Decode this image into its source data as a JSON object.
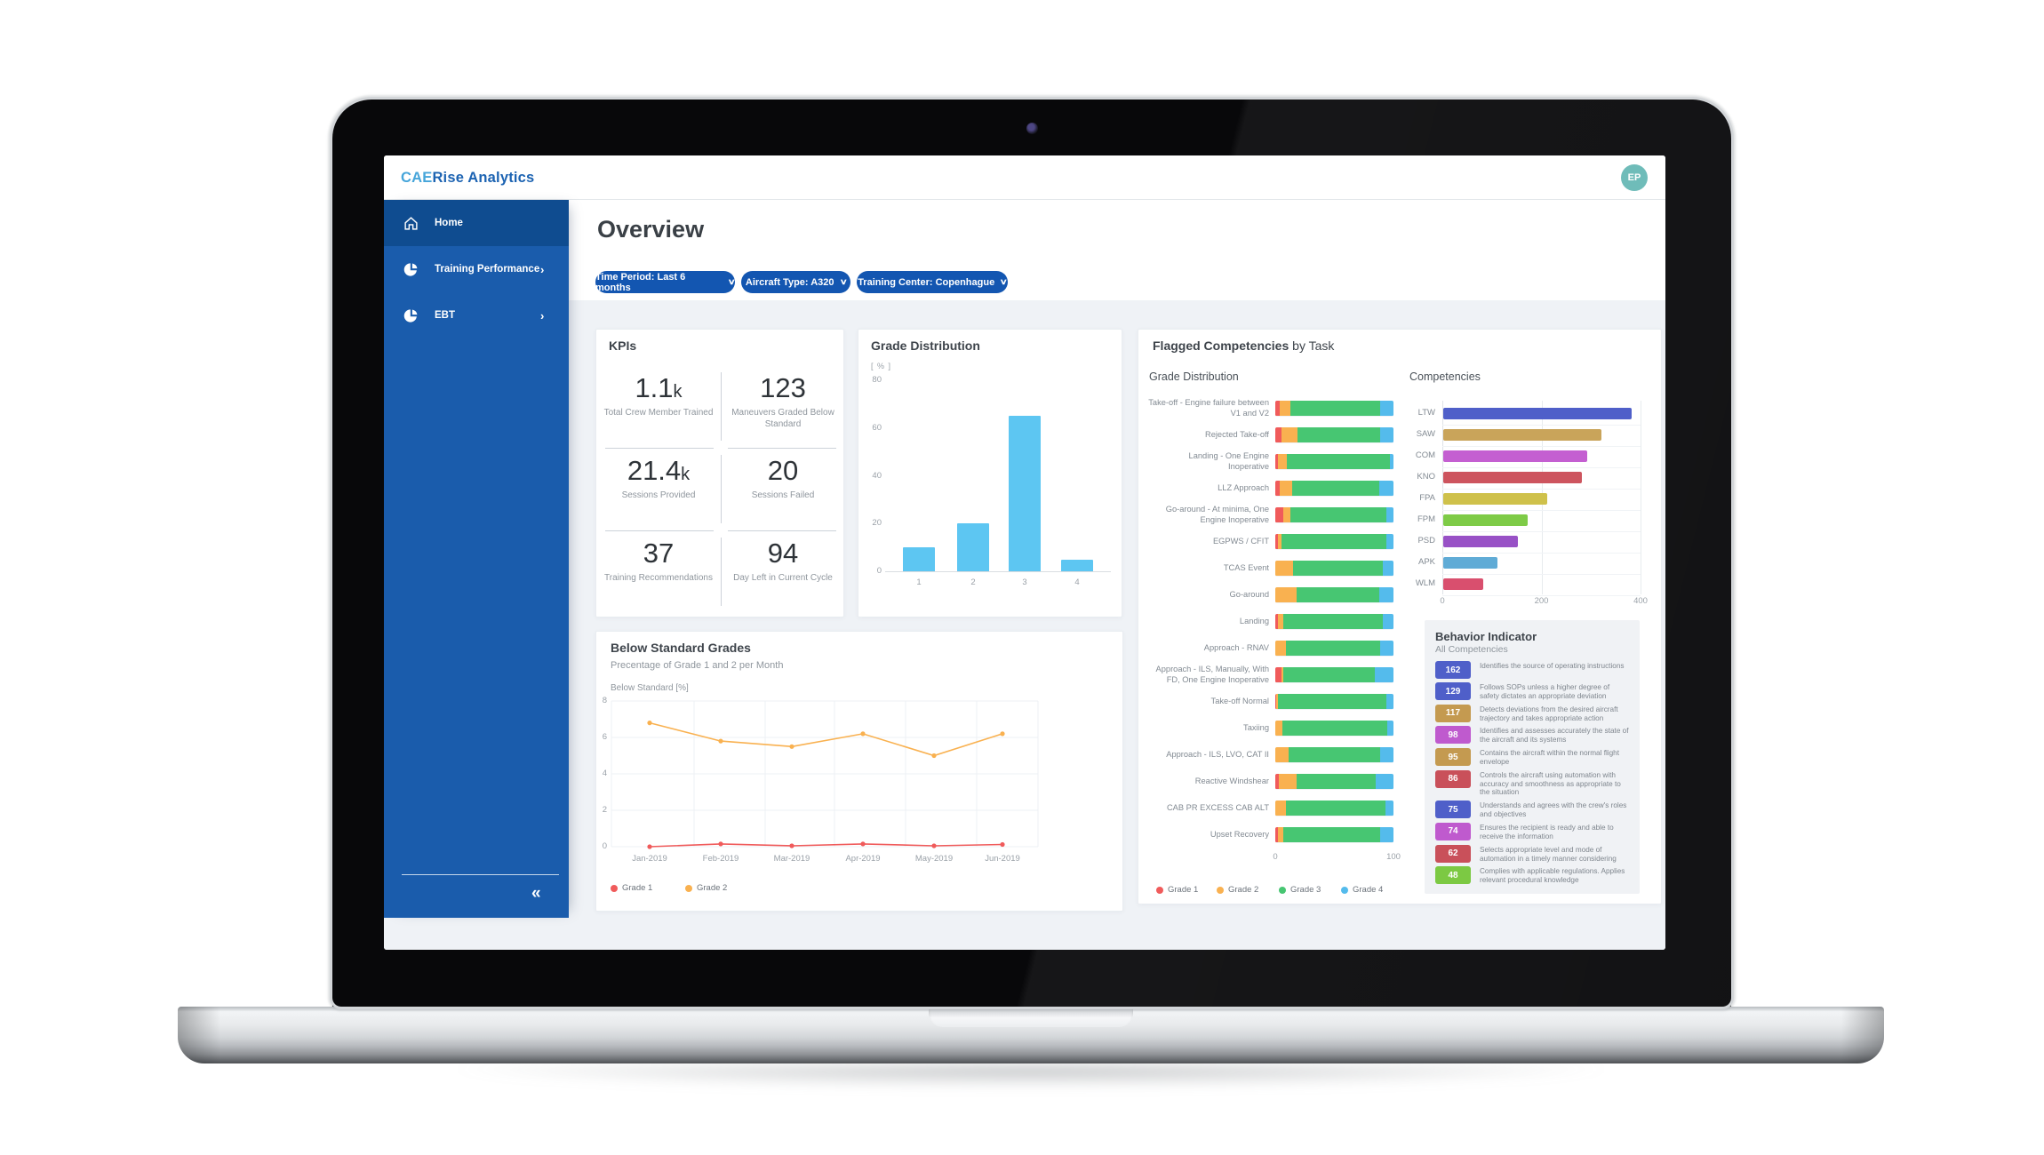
{
  "window": {
    "brand_prefix": "CAE",
    "brand_suffix": "Rise Analytics",
    "avatar_initials": "EP"
  },
  "sidebar": {
    "items": [
      {
        "label": "Home",
        "icon": "home-icon",
        "active": true,
        "chevron": false
      },
      {
        "label": "Training Performance",
        "icon": "pie-chart-icon",
        "active": false,
        "chevron": true
      },
      {
        "label": "EBT",
        "icon": "pie-chart-icon",
        "active": false,
        "chevron": true
      }
    ],
    "collapse_glyph": "«",
    "chevron_glyph": "›"
  },
  "page": {
    "title": "Overview",
    "filters": [
      {
        "label": "Time Period: Last 6 months"
      },
      {
        "label": "Aircraft Type: A320"
      },
      {
        "label": "Training Center: Copenhague"
      }
    ]
  },
  "kpis": {
    "title": "KPIs",
    "items": [
      {
        "value": "1.1",
        "suffix": "k",
        "label": "Total Crew Member Trained"
      },
      {
        "value": "123",
        "suffix": "",
        "label": "Maneuvers Graded Below Standard"
      },
      {
        "value": "21.4",
        "suffix": "k",
        "label": "Sessions Provided"
      },
      {
        "value": "20",
        "suffix": "",
        "label": "Sessions Failed"
      },
      {
        "value": "37",
        "suffix": "",
        "label": "Training Recommendations"
      },
      {
        "value": "94",
        "suffix": "",
        "label": "Day Left in Current Cycle"
      }
    ]
  },
  "behavior": {
    "title": "Behavior Indicator",
    "subtitle": "All Competencies",
    "items": [
      {
        "value": 162,
        "color": "#4f5fc9",
        "text": "Identifies the source of operating instructions"
      },
      {
        "value": 129,
        "color": "#4f5fc9",
        "text": "Follows SOPs unless a higher degree of safety dictates an appropriate deviation"
      },
      {
        "value": 117,
        "color": "#c49a50",
        "text": "Detects deviations from the desired aircraft trajectory and takes appropriate action"
      },
      {
        "value": 98,
        "color": "#bf5ace",
        "text": "Identifies and assesses accurately the state of the aircraft and its systems"
      },
      {
        "value": 95,
        "color": "#c49a50",
        "text": "Contains the aircraft within the normal flight envelope"
      },
      {
        "value": 86,
        "color": "#c9505a",
        "text": "Controls the aircraft using automation with accuracy and smoothness as appropriate to the situation"
      },
      {
        "value": 75,
        "color": "#4f5fc9",
        "text": "Understands and agrees with the crew's roles and objectives"
      },
      {
        "value": 74,
        "color": "#bf5ace",
        "text": "Ensures the recipient is ready and able to receive the information"
      },
      {
        "value": 62,
        "color": "#c9505a",
        "text": "Selects appropriate level and mode of automation in a timely manner considering"
      },
      {
        "value": 48,
        "color": "#7cc943",
        "text": "Complies with applicable regulations. Applies relevant procedural knowledge"
      }
    ]
  },
  "chart_data": [
    {
      "id": "grade_distribution",
      "type": "bar",
      "title": "Grade Distribution",
      "unit_label": "[ % ]",
      "categories": [
        "1",
        "2",
        "3",
        "4"
      ],
      "values": [
        10,
        20,
        65,
        5
      ],
      "ylim": [
        0,
        80
      ],
      "yticks": [
        0,
        20,
        40,
        60,
        80
      ],
      "bar_color": "#5dc6f2",
      "legend_position": "none",
      "grid": false
    },
    {
      "id": "flagged_competencies_by_task",
      "type": "stacked-bar-horizontal",
      "title_bold": "Flagged Competencies",
      "title_tail": " by Task",
      "subtitle": "Grade Distribution",
      "xlim": [
        0,
        100
      ],
      "xticks": [
        0,
        100
      ],
      "legend": [
        "Grade 1",
        "Grade 2",
        "Grade 3",
        "Grade 4"
      ],
      "colors": [
        "#f05b5b",
        "#f9b150",
        "#47c672",
        "#54bbec"
      ],
      "rows": [
        {
          "label": "Take-off - Engine failure between V1 and V2",
          "values": [
            4,
            9,
            76,
            11
          ]
        },
        {
          "label": "Rejected Take-off",
          "values": [
            5,
            14,
            70,
            11
          ]
        },
        {
          "label": "Landing - One Engine Inoperative",
          "values": [
            2,
            8,
            87,
            3
          ]
        },
        {
          "label": "LLZ Approach",
          "values": [
            4,
            10,
            74,
            12
          ]
        },
        {
          "label": "Go-around - At minima, One Engine Inoperative",
          "values": [
            7,
            6,
            81,
            6
          ]
        },
        {
          "label": "EGPWS / CFIT",
          "values": [
            2,
            3,
            89,
            6
          ]
        },
        {
          "label": "TCAS Event",
          "values": [
            0,
            15,
            76,
            9
          ]
        },
        {
          "label": "Go-around",
          "values": [
            0,
            18,
            70,
            12
          ]
        },
        {
          "label": "Landing",
          "values": [
            2,
            5,
            84,
            9
          ]
        },
        {
          "label": "Approach - RNAV",
          "values": [
            0,
            9,
            80,
            11
          ]
        },
        {
          "label": "Approach - ILS, Manually, With FD, One Engine Inoperative",
          "values": [
            5,
            2,
            77,
            16
          ]
        },
        {
          "label": "Take-off Normal",
          "values": [
            1,
            1,
            92,
            6
          ]
        },
        {
          "label": "Taxiing",
          "values": [
            0,
            6,
            89,
            5
          ]
        },
        {
          "label": "Approach - ILS, LVO, CAT II",
          "values": [
            0,
            11,
            78,
            11
          ]
        },
        {
          "label": "Reactive Windshear",
          "values": [
            3,
            15,
            67,
            15
          ]
        },
        {
          "label": "CAB PR EXCESS CAB ALT",
          "values": [
            0,
            9,
            84,
            7
          ]
        },
        {
          "label": "Upset Recovery",
          "values": [
            2,
            5,
            82,
            11
          ]
        }
      ]
    },
    {
      "id": "competencies",
      "type": "bar-horizontal",
      "subtitle": "Competencies",
      "xlim": [
        0,
        400
      ],
      "xticks": [
        0,
        200,
        400
      ],
      "rows": [
        {
          "label": "LTW",
          "value": 380,
          "color": "#4f5fc9"
        },
        {
          "label": "SAW",
          "value": 320,
          "color": "#c9a45a"
        },
        {
          "label": "COM",
          "value": 290,
          "color": "#c45fd1"
        },
        {
          "label": "KNO",
          "value": 280,
          "color": "#cd545e"
        },
        {
          "label": "FPA",
          "value": 210,
          "color": "#cfc14b"
        },
        {
          "label": "FPM",
          "value": 170,
          "color": "#7ecb47"
        },
        {
          "label": "PSD",
          "value": 150,
          "color": "#9851c6"
        },
        {
          "label": "APK",
          "value": 110,
          "color": "#5fabd6"
        },
        {
          "label": "WLM",
          "value": 80,
          "color": "#d94f6e"
        }
      ]
    },
    {
      "id": "below_standard_grades",
      "type": "line",
      "title": "Below Standard Grades",
      "subtitle": "Precentage of Grade 1 and 2 per Month",
      "ylabel": "Below Standard [%]",
      "x": [
        "Jan-2019",
        "Feb-2019",
        "Mar-2019",
        "Apr-2019",
        "May-2019",
        "Jun-2019"
      ],
      "series": [
        {
          "name": "Grade 1",
          "color": "#f05b5b",
          "values": [
            0.0,
            0.15,
            0.05,
            0.15,
            0.05,
            0.12
          ]
        },
        {
          "name": "Grade 2",
          "color": "#f9b150",
          "values": [
            6.8,
            5.8,
            5.5,
            6.2,
            5.0,
            6.2
          ]
        }
      ],
      "ylim": [
        0,
        8
      ],
      "yticks": [
        0,
        2,
        4,
        6,
        8
      ],
      "grid": true,
      "legend_position": "bottom-left"
    }
  ],
  "colors": {
    "sidebar": "#1a5cac",
    "sidebar_active": "#0f4c90",
    "pill": "#1356b1",
    "avatar": "#6fbcb9",
    "accent_bar": "#5dc6f2"
  }
}
